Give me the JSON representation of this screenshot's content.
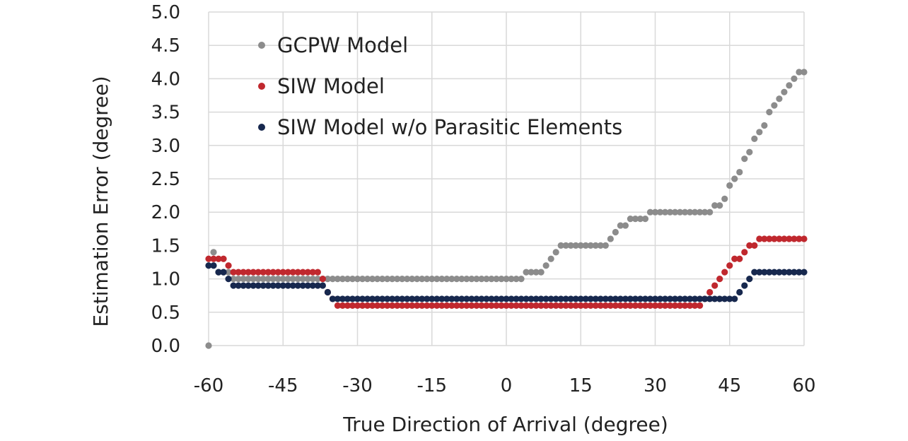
{
  "chart_data": {
    "type": "scatter",
    "xlabel": "True Direction of Arrival (degree)",
    "ylabel": "Estimation Error (degree)",
    "xlim": [
      -60,
      60
    ],
    "ylim": [
      0,
      5
    ],
    "x_ticks": [
      "-60",
      "-45",
      "-30",
      "-15",
      "0",
      "15",
      "30",
      "45",
      "60"
    ],
    "y_ticks": [
      "0.0",
      "0.5",
      "1.0",
      "1.5",
      "2.0",
      "2.5",
      "3.0",
      "3.5",
      "4.0",
      "4.5",
      "5.0"
    ],
    "grid": true,
    "legend_position": "top-left",
    "series": [
      {
        "name": "GCPW Model",
        "color": "#8c8c8c",
        "segments": [
          [
            -60,
            -60,
            0.0
          ],
          [
            -59,
            -59,
            1.4
          ],
          [
            -58,
            -56,
            1.1
          ],
          [
            -55,
            -1,
            1.0
          ],
          [
            0,
            3,
            1.0
          ],
          [
            4,
            7,
            1.1
          ],
          [
            8,
            8,
            1.2
          ],
          [
            9,
            9,
            1.3
          ],
          [
            10,
            10,
            1.4
          ],
          [
            11,
            20,
            1.5
          ],
          [
            21,
            21,
            1.6
          ],
          [
            22,
            22,
            1.7
          ],
          [
            23,
            24,
            1.8
          ],
          [
            25,
            28,
            1.9
          ],
          [
            29,
            41,
            2.0
          ],
          [
            42,
            43,
            2.1
          ],
          [
            44,
            44,
            2.2
          ],
          [
            45,
            45,
            2.4
          ],
          [
            46,
            46,
            2.5
          ],
          [
            47,
            47,
            2.6
          ],
          [
            48,
            48,
            2.8
          ],
          [
            49,
            49,
            2.9
          ],
          [
            50,
            50,
            3.1
          ],
          [
            51,
            51,
            3.2
          ],
          [
            52,
            52,
            3.3
          ],
          [
            53,
            53,
            3.5
          ],
          [
            54,
            54,
            3.6
          ],
          [
            55,
            55,
            3.7
          ],
          [
            56,
            56,
            3.8
          ],
          [
            57,
            57,
            3.9
          ],
          [
            58,
            58,
            4.0
          ],
          [
            59,
            59,
            4.1
          ],
          [
            60,
            60,
            4.1
          ]
        ]
      },
      {
        "name": "SIW Model",
        "color": "#c0282e",
        "segments": [
          [
            -60,
            -57,
            1.3
          ],
          [
            -56,
            -56,
            1.2
          ],
          [
            -55,
            -38,
            1.1
          ],
          [
            -37,
            -37,
            1.0
          ],
          [
            -36,
            -36,
            0.8
          ],
          [
            -35,
            -35,
            0.7
          ],
          [
            -34,
            39,
            0.6
          ],
          [
            40,
            40,
            0.7
          ],
          [
            41,
            41,
            0.8
          ],
          [
            42,
            42,
            0.9
          ],
          [
            43,
            43,
            1.0
          ],
          [
            44,
            44,
            1.1
          ],
          [
            45,
            45,
            1.2
          ],
          [
            46,
            47,
            1.3
          ],
          [
            48,
            48,
            1.4
          ],
          [
            49,
            50,
            1.5
          ],
          [
            51,
            60,
            1.6
          ]
        ]
      },
      {
        "name": "SIW Model w/o Parasitic Elements",
        "color": "#17284e",
        "segments": [
          [
            -60,
            -59,
            1.2
          ],
          [
            -58,
            -57,
            1.1
          ],
          [
            -56,
            -56,
            1.0
          ],
          [
            -55,
            -37,
            0.9
          ],
          [
            -36,
            -36,
            0.8
          ],
          [
            -35,
            46,
            0.7
          ],
          [
            47,
            47,
            0.8
          ],
          [
            48,
            48,
            0.9
          ],
          [
            49,
            49,
            1.0
          ],
          [
            50,
            60,
            1.1
          ]
        ]
      }
    ]
  }
}
